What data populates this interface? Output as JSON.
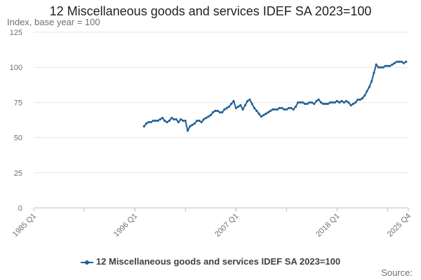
{
  "chart_data": {
    "type": "line",
    "title": "12 Miscellaneous goods and services IDEF SA 2023=100",
    "ylabel": "Index, base year = 100",
    "ylim": [
      0,
      125
    ],
    "yticks": [
      0,
      25,
      50,
      75,
      100,
      125
    ],
    "xlim": [
      "1985 Q1",
      "2025 Q4"
    ],
    "xticks": [
      "1985 Q1",
      "1996 Q1",
      "2007 Q1",
      "2018 Q1",
      "2025 Q4"
    ],
    "grid": true,
    "legend_position": "bottom",
    "series": [
      {
        "name": "12 Miscellaneous goods and services IDEF SA 2023=100",
        "color": "#206095",
        "points": [
          [
            "1997-01",
            58
          ],
          [
            "1997-04",
            60
          ],
          [
            "1997-07",
            61
          ],
          [
            "1997-10",
            61
          ],
          [
            "1998-01",
            62
          ],
          [
            "1998-04",
            62
          ],
          [
            "1998-07",
            62
          ],
          [
            "1998-10",
            63
          ],
          [
            "1999-01",
            64
          ],
          [
            "1999-04",
            62
          ],
          [
            "1999-07",
            61
          ],
          [
            "1999-10",
            62
          ],
          [
            "2000-01",
            64
          ],
          [
            "2000-04",
            63
          ],
          [
            "2000-07",
            63
          ],
          [
            "2000-10",
            61
          ],
          [
            "2001-01",
            63
          ],
          [
            "2001-04",
            62
          ],
          [
            "2001-07",
            62
          ],
          [
            "2001-10",
            55
          ],
          [
            "2002-01",
            58
          ],
          [
            "2002-04",
            59
          ],
          [
            "2002-07",
            60
          ],
          [
            "2002-10",
            62
          ],
          [
            "2003-01",
            62
          ],
          [
            "2003-04",
            61
          ],
          [
            "2003-07",
            63
          ],
          [
            "2003-10",
            64
          ],
          [
            "2004-01",
            65
          ],
          [
            "2004-04",
            66
          ],
          [
            "2004-07",
            68
          ],
          [
            "2004-10",
            69
          ],
          [
            "2005-01",
            69
          ],
          [
            "2005-04",
            68
          ],
          [
            "2005-07",
            68
          ],
          [
            "2005-10",
            70
          ],
          [
            "2006-01",
            71
          ],
          [
            "2006-04",
            72
          ],
          [
            "2006-07",
            74
          ],
          [
            "2006-10",
            76
          ],
          [
            "2007-01",
            71
          ],
          [
            "2007-04",
            72
          ],
          [
            "2007-07",
            73
          ],
          [
            "2007-10",
            70
          ],
          [
            "2008-01",
            73
          ],
          [
            "2008-04",
            76
          ],
          [
            "2008-07",
            77
          ],
          [
            "2008-10",
            74
          ],
          [
            "2009-01",
            71
          ],
          [
            "2009-04",
            69
          ],
          [
            "2009-07",
            67
          ],
          [
            "2009-10",
            65
          ],
          [
            "2010-01",
            66
          ],
          [
            "2010-04",
            67
          ],
          [
            "2010-07",
            68
          ],
          [
            "2010-10",
            69
          ],
          [
            "2011-01",
            70
          ],
          [
            "2011-04",
            70
          ],
          [
            "2011-07",
            70
          ],
          [
            "2011-10",
            71
          ],
          [
            "2012-01",
            71
          ],
          [
            "2012-04",
            70
          ],
          [
            "2012-07",
            70
          ],
          [
            "2012-10",
            71
          ],
          [
            "2013-01",
            71
          ],
          [
            "2013-04",
            70
          ],
          [
            "2013-07",
            72
          ],
          [
            "2013-10",
            75
          ],
          [
            "2014-01",
            75
          ],
          [
            "2014-04",
            75
          ],
          [
            "2014-07",
            74
          ],
          [
            "2014-10",
            74
          ],
          [
            "2015-01",
            75
          ],
          [
            "2015-04",
            75
          ],
          [
            "2015-07",
            74
          ],
          [
            "2015-10",
            76
          ],
          [
            "2016-01",
            77
          ],
          [
            "2016-04",
            75
          ],
          [
            "2016-07",
            74
          ],
          [
            "2016-10",
            74
          ],
          [
            "2017-01",
            74
          ],
          [
            "2017-04",
            75
          ],
          [
            "2017-07",
            75
          ],
          [
            "2017-10",
            75
          ],
          [
            "2018-01",
            76
          ],
          [
            "2018-04",
            75
          ],
          [
            "2018-07",
            76
          ],
          [
            "2018-10",
            75
          ],
          [
            "2019-01",
            76
          ],
          [
            "2019-04",
            75
          ],
          [
            "2019-07",
            73
          ],
          [
            "2019-10",
            74
          ],
          [
            "2020-01",
            75
          ],
          [
            "2020-04",
            77
          ],
          [
            "2020-07",
            77
          ],
          [
            "2020-10",
            78
          ],
          [
            "2021-01",
            80
          ],
          [
            "2021-04",
            83
          ],
          [
            "2021-07",
            86
          ],
          [
            "2021-10",
            90
          ],
          [
            "2022-01",
            96
          ],
          [
            "2022-04",
            102
          ],
          [
            "2022-07",
            100
          ],
          [
            "2022-10",
            100
          ],
          [
            "2023-01",
            100
          ],
          [
            "2023-04",
            101
          ],
          [
            "2023-07",
            101
          ],
          [
            "2023-10",
            101
          ],
          [
            "2024-01",
            102
          ],
          [
            "2024-04",
            103
          ],
          [
            "2024-07",
            104
          ],
          [
            "2024-10",
            104
          ],
          [
            "2025-01",
            104
          ],
          [
            "2025-04",
            103
          ],
          [
            "2025-07",
            104
          ]
        ]
      }
    ],
    "source": "Source:"
  }
}
